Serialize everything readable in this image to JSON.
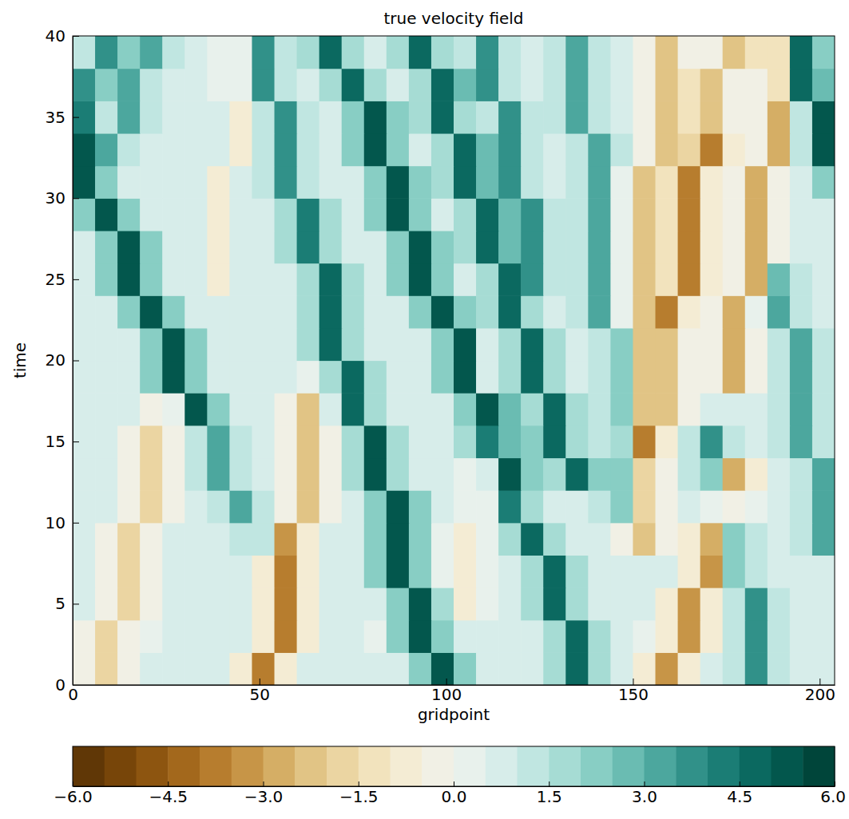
{
  "chart_data": {
    "type": "heatmap",
    "title": "true velocity field",
    "x_label": "gridpoint",
    "y_label": "time",
    "xlim": [
      0,
      204
    ],
    "ylim": [
      0,
      40
    ],
    "xticks": [
      0,
      50,
      100,
      150,
      200
    ],
    "yticks": [
      0,
      5,
      10,
      15,
      20,
      25,
      30,
      35,
      40
    ],
    "x": [
      3,
      9,
      15,
      21,
      27,
      33,
      39,
      45,
      51,
      57,
      63,
      69,
      75,
      81,
      87,
      93,
      99,
      105,
      111,
      117,
      123,
      129,
      135,
      141,
      147,
      153,
      159,
      165,
      171,
      177,
      183,
      189,
      195,
      201
    ],
    "y": [
      1,
      3,
      5,
      7,
      9,
      11,
      13,
      15,
      17,
      19,
      21,
      23,
      25,
      27,
      29,
      31,
      33,
      35,
      37,
      39
    ],
    "values": [
      [
        -0.3,
        -2.0,
        -0.3,
        0.5,
        0.5,
        0.5,
        0.5,
        -0.8,
        -4.0,
        -0.8,
        0.5,
        0.5,
        0.5,
        0.5,
        0.5,
        2.0,
        5.0,
        2.0,
        0.5,
        0.5,
        0.5,
        1.7,
        4.5,
        1.7,
        0.5,
        -0.7,
        -3.5,
        -0.7,
        0.5,
        1.4,
        3.5,
        1.4,
        0.5,
        0.5
      ],
      [
        -0.3,
        -2.0,
        -0.3,
        0.4,
        0.6,
        0.5,
        0.7,
        0.5,
        -0.8,
        -4.0,
        -0.8,
        0.5,
        0.6,
        0.4,
        2.0,
        5.0,
        2.0,
        0.5,
        0.5,
        0.6,
        0.5,
        1.7,
        4.5,
        1.7,
        0.5,
        0.4,
        -0.7,
        -3.5,
        -0.7,
        1.4,
        3.5,
        1.4,
        0.5,
        0.6
      ],
      [
        0.5,
        -0.3,
        -2.0,
        -0.3,
        0.5,
        0.6,
        0.5,
        0.5,
        -0.8,
        -4.0,
        -0.8,
        0.5,
        0.5,
        0.6,
        2.0,
        5.0,
        1.5,
        -1.0,
        0.0,
        0.5,
        1.7,
        4.5,
        1.7,
        0.5,
        0.6,
        0.5,
        -0.7,
        -3.5,
        -0.7,
        1.4,
        3.5,
        1.4,
        0.5,
        0.5
      ],
      [
        0.5,
        -0.3,
        -2.0,
        -0.3,
        0.5,
        0.5,
        0.6,
        0.5,
        -0.8,
        -4.0,
        -0.8,
        0.5,
        0.5,
        2.0,
        5.0,
        2.0,
        0.3,
        -1.0,
        0.0,
        0.5,
        1.7,
        4.5,
        1.7,
        0.5,
        0.5,
        0.6,
        0.5,
        -0.7,
        -3.5,
        2.3,
        1.4,
        0.5,
        0.6,
        0.5
      ],
      [
        0.5,
        -0.3,
        -2.0,
        -0.3,
        0.5,
        0.5,
        0.6,
        1.1,
        1.2,
        -3.4,
        -0.8,
        0.5,
        0.5,
        2.0,
        5.0,
        2.0,
        0.3,
        -1.0,
        0.0,
        1.7,
        4.5,
        1.7,
        0.5,
        0.5,
        -0.4,
        -2.5,
        -0.4,
        -0.7,
        -2.6,
        2.3,
        1.4,
        0.5,
        1.2,
        3.0
      ],
      [
        0.5,
        0.5,
        -0.3,
        -2.0,
        -0.3,
        0.5,
        1.2,
        3.0,
        1.2,
        -0.4,
        -2.5,
        -0.4,
        0.5,
        2.0,
        5.0,
        2.0,
        0.5,
        0.0,
        0.2,
        4.0,
        1.7,
        0.5,
        0.5,
        1.2,
        2.1,
        -1.8,
        -0.4,
        0.5,
        0.2,
        -0.5,
        0.2,
        0.5,
        1.2,
        3.0
      ],
      [
        0.5,
        0.5,
        -0.3,
        -2.0,
        -0.3,
        1.2,
        3.0,
        1.2,
        0.5,
        -0.4,
        -2.5,
        -0.4,
        1.9,
        5.0,
        1.9,
        0.5,
        0.5,
        0.0,
        0.5,
        5.0,
        2.0,
        1.7,
        4.5,
        2.4,
        2.1,
        -1.8,
        -0.4,
        1.4,
        2.3,
        -2.6,
        -0.7,
        0.5,
        1.2,
        3.0
      ],
      [
        0.5,
        0.5,
        -0.3,
        -2.0,
        -0.3,
        1.2,
        3.0,
        1.2,
        0.5,
        -0.4,
        -2.5,
        -0.4,
        1.9,
        5.0,
        1.9,
        0.5,
        0.5,
        1.5,
        4.0,
        2.5,
        2.2,
        4.5,
        1.7,
        1.2,
        1.8,
        -4.0,
        -0.7,
        1.4,
        3.5,
        1.4,
        0.5,
        1.2,
        3.0,
        1.2
      ],
      [
        0.5,
        0.5,
        0.5,
        -0.1,
        0.0,
        5.0,
        2.0,
        0.5,
        0.5,
        -0.4,
        -2.5,
        0.8,
        4.5,
        1.7,
        0.5,
        0.5,
        0.5,
        2.0,
        5.0,
        2.5,
        1.7,
        4.5,
        1.7,
        1.2,
        2.1,
        -2.5,
        -2.5,
        -0.4,
        0.5,
        0.5,
        0.5,
        1.2,
        3.0,
        1.2
      ],
      [
        0.5,
        0.5,
        0.5,
        2.0,
        5.0,
        2.0,
        0.5,
        0.5,
        0.6,
        0.5,
        0.4,
        1.7,
        4.5,
        1.7,
        0.5,
        0.6,
        2.0,
        5.0,
        0.5,
        1.7,
        4.5,
        1.7,
        0.5,
        1.2,
        2.1,
        -2.5,
        -2.5,
        -0.4,
        -0.5,
        -3.0,
        -0.5,
        1.2,
        3.0,
        1.2
      ],
      [
        0.5,
        0.5,
        0.5,
        2.0,
        5.0,
        2.0,
        0.5,
        0.5,
        0.5,
        0.6,
        1.7,
        4.5,
        1.7,
        0.5,
        0.5,
        0.6,
        2.0,
        5.0,
        0.5,
        1.7,
        4.5,
        1.7,
        0.5,
        1.2,
        2.1,
        -2.5,
        -2.5,
        -0.4,
        -0.5,
        -3.0,
        -0.5,
        1.2,
        3.0,
        1.2
      ],
      [
        0.5,
        0.5,
        2.0,
        5.0,
        2.0,
        0.5,
        0.5,
        0.5,
        0.5,
        0.5,
        1.7,
        4.5,
        1.7,
        0.5,
        0.5,
        2.0,
        5.0,
        2.0,
        1.7,
        4.5,
        1.7,
        0.5,
        1.2,
        3.0,
        0.3,
        -2.5,
        -4.0,
        -0.9,
        -0.5,
        -3.0,
        0.3,
        3.0,
        1.2,
        0.5
      ],
      [
        0.5,
        2.0,
        5.0,
        2.0,
        0.5,
        0.5,
        -0.7,
        0.5,
        0.5,
        0.5,
        1.7,
        4.5,
        1.7,
        0.5,
        2.0,
        5.0,
        2.0,
        0.5,
        1.7,
        4.5,
        3.5,
        1.4,
        1.2,
        3.0,
        0.3,
        -2.5,
        -1.2,
        -4.0,
        -0.9,
        -0.5,
        -3.0,
        2.5,
        1.2,
        0.5
      ],
      [
        0.5,
        2.0,
        5.0,
        2.0,
        0.5,
        0.5,
        -0.7,
        0.5,
        0.5,
        1.5,
        4.0,
        1.5,
        0.5,
        0.5,
        2.0,
        5.0,
        2.0,
        1.7,
        4.5,
        2.6,
        3.5,
        1.4,
        1.2,
        3.0,
        0.3,
        -2.5,
        -1.2,
        -4.0,
        -0.9,
        -0.5,
        -3.0,
        -0.5,
        0.5,
        0.5
      ],
      [
        2.0,
        5.0,
        2.0,
        0.5,
        0.5,
        0.5,
        -0.7,
        0.5,
        0.5,
        1.5,
        4.0,
        1.5,
        0.5,
        2.0,
        5.0,
        2.0,
        0.5,
        1.7,
        4.5,
        2.6,
        3.5,
        1.4,
        1.2,
        3.0,
        0.3,
        -2.5,
        -1.2,
        -4.0,
        -0.9,
        -0.5,
        -3.0,
        -0.5,
        0.5,
        0.5
      ],
      [
        5.0,
        2.0,
        0.5,
        0.5,
        0.5,
        0.5,
        -0.7,
        0.5,
        1.4,
        3.5,
        1.4,
        0.5,
        0.5,
        2.0,
        5.0,
        2.0,
        1.7,
        4.5,
        2.6,
        3.5,
        1.4,
        0.5,
        1.2,
        3.0,
        0.3,
        -2.5,
        -1.2,
        -4.0,
        -0.9,
        -0.5,
        -3.0,
        -0.5,
        0.5,
        2.0
      ],
      [
        5.0,
        3.0,
        1.2,
        0.5,
        0.5,
        0.5,
        0.5,
        -0.7,
        1.4,
        3.5,
        1.4,
        0.5,
        2.0,
        5.0,
        2.0,
        0.5,
        1.7,
        4.5,
        2.6,
        3.5,
        1.4,
        0.5,
        1.2,
        3.0,
        1.2,
        -0.4,
        -2.5,
        -1.8,
        -4.0,
        -0.9,
        -0.5,
        -3.0,
        1.0,
        5.0
      ],
      [
        4.0,
        1.4,
        3.0,
        1.2,
        0.5,
        0.5,
        0.5,
        -0.7,
        1.4,
        3.5,
        1.4,
        0.5,
        2.0,
        5.0,
        2.0,
        1.7,
        4.5,
        1.7,
        1.4,
        3.5,
        1.4,
        1.2,
        3.0,
        1.2,
        0.5,
        -0.4,
        -2.5,
        -1.3,
        -2.5,
        -0.4,
        -0.5,
        -3.0,
        1.0,
        5.0
      ],
      [
        3.5,
        2.2,
        3.0,
        1.2,
        0.5,
        0.5,
        0.0,
        0.2,
        3.5,
        1.4,
        0.5,
        1.7,
        4.5,
        1.7,
        0.5,
        1.7,
        4.5,
        2.6,
        3.5,
        1.4,
        0.5,
        1.2,
        3.0,
        1.2,
        0.5,
        -0.4,
        -2.5,
        -1.3,
        -2.5,
        -0.4,
        -0.5,
        -1.5,
        4.5,
        2.5
      ],
      [
        1.4,
        3.5,
        2.2,
        3.0,
        1.2,
        0.5,
        0.0,
        0.2,
        3.5,
        1.4,
        1.7,
        4.5,
        1.7,
        0.5,
        1.7,
        4.5,
        1.7,
        1.4,
        3.5,
        1.4,
        0.5,
        1.2,
        3.0,
        1.2,
        0.5,
        -0.4,
        -2.5,
        -0.4,
        -0.4,
        -2.5,
        -1.5,
        -1.5,
        4.5,
        2.0
      ]
    ],
    "colorbar": {
      "range": [
        -6,
        6
      ],
      "ticks": [
        {
          "value": -6,
          "label": "−6.0"
        },
        {
          "value": -4.5,
          "label": "−4.5"
        },
        {
          "value": -3,
          "label": "−3.0"
        },
        {
          "value": -1.5,
          "label": "−1.5"
        },
        {
          "value": 0,
          "label": "0.0"
        },
        {
          "value": 1.5,
          "label": "1.5"
        },
        {
          "value": 3,
          "label": "3.0"
        },
        {
          "value": 4.5,
          "label": "4.5"
        },
        {
          "value": 6,
          "label": "6.0"
        }
      ],
      "levels": [
        -6,
        -5.5,
        -5,
        -4.5,
        -4,
        -3.5,
        -3,
        -2.5,
        -2,
        -1.5,
        -1,
        -0.5,
        0,
        0.5,
        1,
        1.5,
        2,
        2.5,
        3,
        3.5,
        4,
        4.5,
        5,
        5.5,
        6
      ]
    }
  }
}
